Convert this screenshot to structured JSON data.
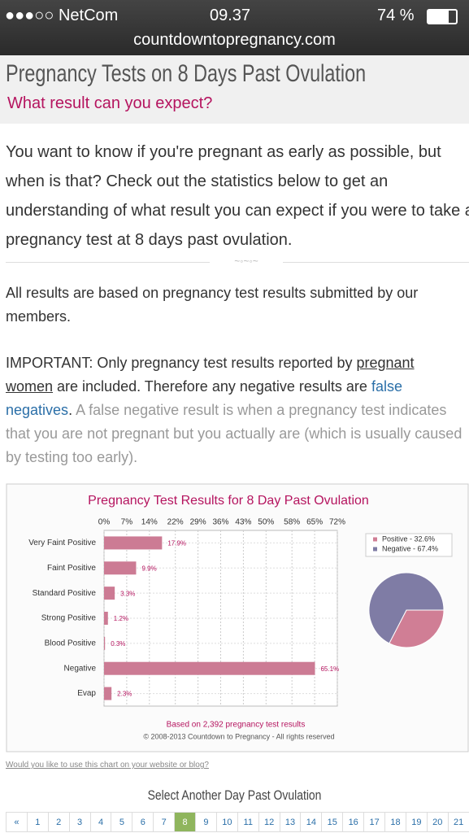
{
  "status_bar": {
    "carrier": "NetCom",
    "time": "09.37",
    "battery": "74 %"
  },
  "url": "countdowntopregnancy.com",
  "header": {
    "title": "Pregnancy Tests on 8 Days Past Ovulation",
    "subtitle": "What result can you expect?"
  },
  "intro": "You want to know if you're pregnant as early as possible, but when is that? Check out the statistics below to get an understanding of what result you can expect if you were to take a pregnancy test at 8 days past ovulation.",
  "paragraph": "All results are based on pregnancy test results submitted by our members.",
  "important": {
    "part1": "IMPORTANT: Only pregnancy test results reported by ",
    "link1": "pregnant women",
    "part2": " are included. Therefore any negative results are ",
    "link2": "false negatives",
    "part3": ". ",
    "note": "A false negative result is when a pregnancy test indicates that you are not pregnant but you actually are (which is usually caused by testing too early)."
  },
  "chart_data": [
    {
      "type": "bar",
      "orientation": "horizontal",
      "title": "Pregnancy Test Results for 8 Day Past Ovulation",
      "categories": [
        "Very Faint Positive",
        "Faint Positive",
        "Standard Positive",
        "Strong Positive",
        "Blood Positive",
        "Negative",
        "Evap"
      ],
      "values": [
        17.9,
        9.9,
        3.3,
        1.2,
        0.3,
        65.1,
        2.3
      ],
      "value_labels": [
        "17.9%",
        "9.9%",
        "3.3%",
        "1.2%",
        "0.3%",
        "65.1%",
        "2.3%"
      ],
      "color": "#cc7b94",
      "grid": true,
      "xlim": [
        0,
        72
      ],
      "xticks": [
        {
          "value": 0,
          "label": "0%"
        },
        {
          "value": 7,
          "label": "7%"
        },
        {
          "value": 14,
          "label": "14%"
        },
        {
          "value": 22,
          "label": "22%"
        },
        {
          "value": 29,
          "label": "29%"
        },
        {
          "value": 36,
          "label": "36%"
        },
        {
          "value": 43,
          "label": "43%"
        },
        {
          "value": 50,
          "label": "50%"
        },
        {
          "value": 58,
          "label": "58%"
        },
        {
          "value": 65,
          "label": "65%"
        },
        {
          "value": 72,
          "label": "72%"
        }
      ],
      "note": "Based on 2,392 pregnancy test results",
      "copyright": "© 2008-2013 Countdown to Pregnancy - All rights reserved"
    },
    {
      "type": "pie",
      "categories": [
        "Positive",
        "Negative"
      ],
      "values": [
        32.6,
        67.4
      ],
      "value_labels": [
        "Positive - 32.6%",
        "Negative - 67.4%"
      ],
      "colors": [
        "#d07e95",
        "#7f7ca5"
      ],
      "legend": "top-right"
    }
  ],
  "embed_link": "Would you like to use this chart on your website or blog?",
  "pager": {
    "title": "Select Another Day Past Ovulation",
    "prev": "«",
    "pages": [
      "1",
      "2",
      "3",
      "4",
      "5",
      "6",
      "7",
      "8",
      "9",
      "10",
      "11",
      "12",
      "13",
      "14",
      "15",
      "16",
      "17",
      "18",
      "19",
      "20",
      "21"
    ],
    "active": "8"
  }
}
